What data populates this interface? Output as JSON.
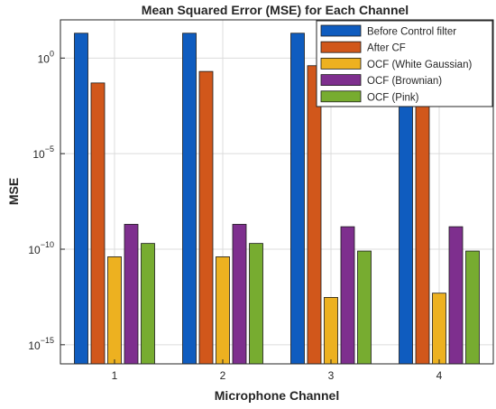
{
  "chart_data": {
    "type": "bar",
    "title": "Mean Squared Error (MSE) for Each Channel",
    "xlabel": "Microphone Channel",
    "ylabel": "MSE",
    "yscale": "log",
    "ylim": [
      1e-16,
      100.0
    ],
    "grid": true,
    "legend_position": "top-right",
    "categories": [
      "1",
      "2",
      "3",
      "4"
    ],
    "y_ticks": [
      {
        "value": 1,
        "base": "10",
        "exp": "0"
      },
      {
        "value": 1e-05,
        "base": "10",
        "exp": "−5"
      },
      {
        "value": 1e-10,
        "base": "10",
        "exp": "−10"
      },
      {
        "value": 1e-15,
        "base": "10",
        "exp": "−15"
      }
    ],
    "series": [
      {
        "name": "Before Control filter",
        "color": "#0F5CBF",
        "values": [
          20,
          20,
          20,
          20
        ]
      },
      {
        "name": "After CF",
        "color": "#D1571B",
        "values": [
          0.05,
          0.2,
          0.4,
          0.05
        ]
      },
      {
        "name": "OCF (White Gaussian)",
        "color": "#EDB120",
        "values": [
          4e-11,
          4e-11,
          3e-13,
          5e-13
        ]
      },
      {
        "name": "OCF (Brownian)",
        "color": "#7E2F8E",
        "values": [
          2e-09,
          2e-09,
          1.5e-09,
          1.5e-09
        ]
      },
      {
        "name": "OCF (Pink)",
        "color": "#77AC30",
        "values": [
          2e-10,
          2e-10,
          8e-11,
          8e-11
        ]
      }
    ]
  }
}
